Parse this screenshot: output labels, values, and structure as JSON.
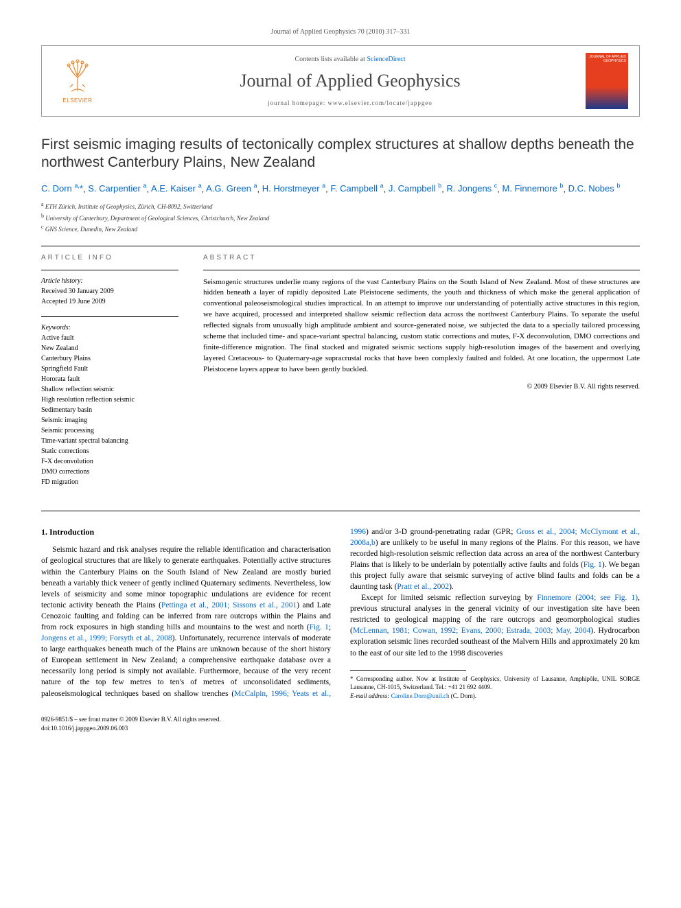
{
  "header": {
    "running": "Journal of Applied Geophysics 70 (2010) 317–331"
  },
  "banner": {
    "contents_prefix": "Contents lists available at ",
    "contents_link": "ScienceDirect",
    "journal_name": "Journal of Applied Geophysics",
    "homepage_prefix": "journal homepage: ",
    "homepage_url": "www.elsevier.com/locate/jappgeo",
    "publisher_label": "ELSEVIER",
    "cover_text": "JOURNAL OF\nAPPLIED\nGEOPHYSICS"
  },
  "title": "First seismic imaging results of tectonically complex structures at shallow depths beneath the northwest Canterbury Plains, New Zealand",
  "authors_html": "C. Dorn <sup>a,</sup>*, S. Carpentier <sup>a</sup>, A.E. Kaiser <sup>a</sup>, A.G. Green <sup>a</sup>, H. Horstmeyer <sup>a</sup>, F. Campbell <sup>a</sup>, J. Campbell <sup>b</sup>, R. Jongens <sup>c</sup>, M. Finnemore <sup>b</sup>, D.C. Nobes <sup>b</sup>",
  "affiliations": [
    {
      "sup": "a",
      "text": "ETH Zürich, Institute of Geophysics, Zürich, CH-8092, Switzerland"
    },
    {
      "sup": "b",
      "text": "University of Canterbury, Department of Geological Sciences, Christchurch, New Zealand"
    },
    {
      "sup": "c",
      "text": "GNS Science, Dunedin, New Zealand"
    }
  ],
  "article_info": {
    "heading": "ARTICLE INFO",
    "history_label": "Article history:",
    "received": "Received 30 January 2009",
    "accepted": "Accepted 19 June 2009",
    "keywords_label": "Keywords:",
    "keywords": [
      "Active fault",
      "New Zealand",
      "Canterbury Plains",
      "Springfield Fault",
      "Hororata fault",
      "Shallow reflection seismic",
      "High resolution reflection seismic",
      "Sedimentary basin",
      "Seismic imaging",
      "Seismic processing",
      "Time-variant spectral balancing",
      "Static corrections",
      "F-X deconvolution",
      "DMO corrections",
      "FD migration"
    ]
  },
  "abstract": {
    "heading": "ABSTRACT",
    "text": "Seismogenic structures underlie many regions of the vast Canterbury Plains on the South Island of New Zealand. Most of these structures are hidden beneath a layer of rapidly deposited Late Pleistocene sediments, the youth and thickness of which make the general application of conventional paleoseismological studies impractical. In an attempt to improve our understanding of potentially active structures in this region, we have acquired, processed and interpreted shallow seismic reflection data across the northwest Canterbury Plains. To separate the useful reflected signals from unusually high amplitude ambient and source-generated noise, we subjected the data to a specially tailored processing scheme that included time- and space-variant spectral balancing, custom static corrections and mutes, F-X deconvolution, DMO corrections and finite-difference migration. The final stacked and migrated seismic sections supply high-resolution images of the basement and overlying layered Cretaceous- to Quaternary-age supracrustal rocks that have been complexly faulted and folded. At one location, the uppermost Late Pleistocene layers appear to have been gently buckled.",
    "copyright": "© 2009 Elsevier B.V. All rights reserved."
  },
  "body": {
    "section_number": "1.",
    "section_title": "Introduction",
    "para1": "Seismic hazard and risk analyses require the reliable identification and characterisation of geological structures that are likely to generate earthquakes. Potentially active structures within the Canterbury Plains on the South Island of New Zealand are mostly buried beneath a variably thick veneer of gently inclined Quaternary sediments. Nevertheless, low levels of seismicity and some minor topographic undulations are evidence for recent tectonic activity beneath the Plains (",
    "ref1": "Pettinga et al., 2001; Sissons et al., 2001",
    "para1b": ") and Late Cenozoic faulting and folding can be inferred from rare outcrops within the Plains and from rock exposures in high standing hills and mountains to the west and north (",
    "ref2": "Fig. 1",
    "para1c": "; ",
    "ref3": "Jongens et al., 1999; Forsyth et al., 2008",
    "para1d": "). Unfortunately, recurrence intervals of moderate to large earthquakes beneath much of the Plains are unknown because of the short history",
    "para2a": "of European settlement in New Zealand; a comprehensive earthquake database over a necessarily long period is simply not available. Furthermore, because of the very recent nature of the top few metres to ten's of metres of unconsolidated sediments, paleoseismological techniques based on shallow trenches (",
    "ref4": "McCalpin, 1996; Yeats et al., 1996",
    "para2b": ") and/or 3-D ground-penetrating radar (GPR; ",
    "ref5": "Gross et al., 2004; McClymont et al., 2008a,b",
    "para2c": ") are unlikely to be useful in many regions of the Plains. For this reason, we have recorded high-resolution seismic reflection data across an area of the northwest Canterbury Plains that is likely to be underlain by potentially active faults and folds (",
    "ref6": "Fig. 1",
    "para2d": "). We began this project fully aware that seismic surveying of active blind faults and folds can be a daunting task (",
    "ref7": "Pratt et al., 2002",
    "para2e": ").",
    "para3a": "Except for limited seismic reflection surveying by ",
    "ref8": "Finnemore (2004; see Fig. 1)",
    "para3b": ", previous structural analyses in the general vicinity of our investigation site have been restricted to geological mapping of the rare outcrops and geomorphological studies (",
    "ref9": "McLennan, 1981; Cowan, 1992; Evans, 2000; Estrada, 2003; May, 2004",
    "para3c": "). Hydrocarbon exploration seismic lines recorded southeast of the Malvern Hills and approximately 20 km to the east of our site led to the 1998 discoveries"
  },
  "footnote": {
    "corr": "* Corresponding author. Now at Institute of Geophysics, University of Lausanne, Amphipôle, UNIL SORGE Lausanne, CH-1015, Switzerland. Tel.: +41 21 692 4409.",
    "email_label": "E-mail address: ",
    "email": "Caroline.Dorn@unil.ch",
    "email_person": " (C. Dorn)."
  },
  "footer": {
    "line1": "0926-9851/$ – see front matter © 2009 Elsevier B.V. All rights reserved.",
    "doi": "doi:10.1016/j.jappgeo.2009.06.003"
  }
}
